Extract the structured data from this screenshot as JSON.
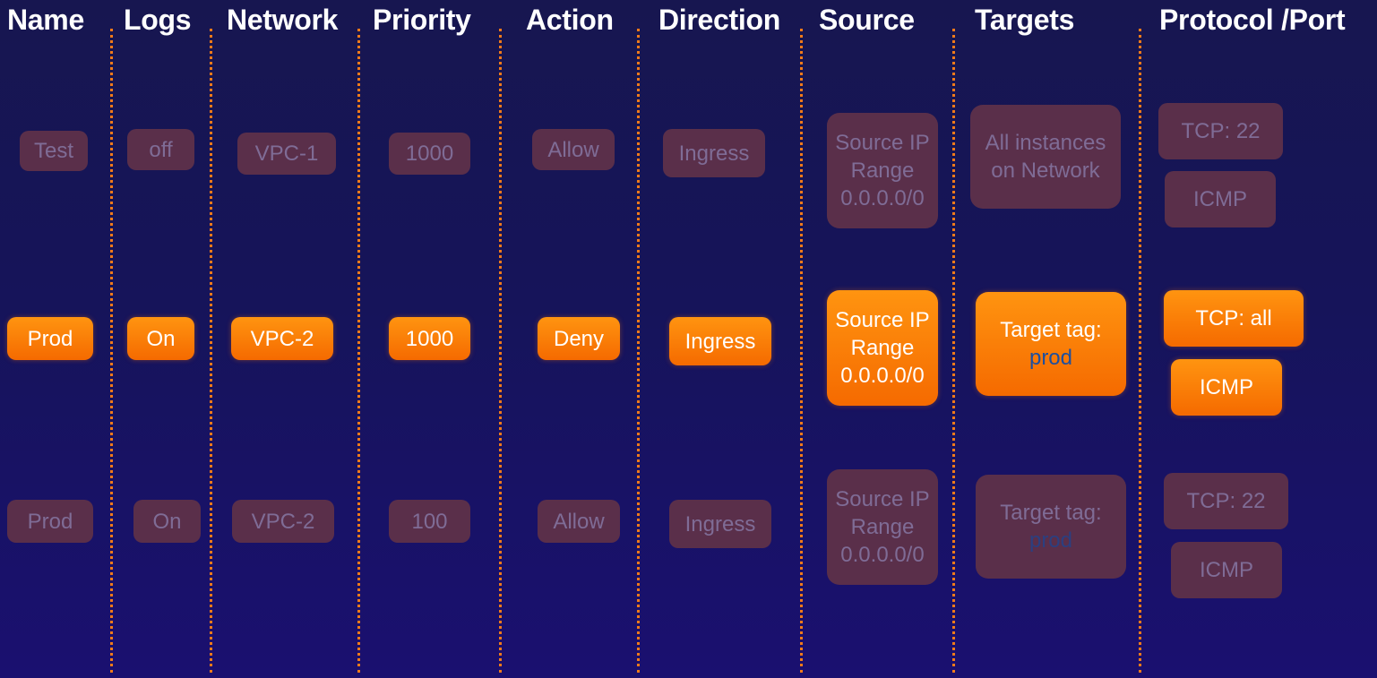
{
  "headers": {
    "name": "Name",
    "logs": "Logs",
    "network": "Network",
    "priority": "Priority",
    "action": "Action",
    "direction": "Direction",
    "source": "Source",
    "targets": "Targets",
    "protocol_port": "Protocol /Port"
  },
  "rows": [
    {
      "state": "dim",
      "name": "Test",
      "logs": "off",
      "network": "VPC-1",
      "priority": "1000",
      "action": "Allow",
      "direction": "Ingress",
      "source": [
        "Source IP",
        "Range",
        "0.0.0.0/0"
      ],
      "targets": [
        "All instances",
        "on Network"
      ],
      "protocols": [
        "TCP: 22",
        "ICMP"
      ]
    },
    {
      "state": "active",
      "name": "Prod",
      "logs": "On",
      "network": "VPC-2",
      "priority": "1000",
      "action": "Deny",
      "direction": "Ingress",
      "source": [
        "Source IP",
        "Range",
        "0.0.0.0/0"
      ],
      "targets": [
        "Target tag:",
        "prod"
      ],
      "protocols": [
        "TCP: all",
        "ICMP"
      ]
    },
    {
      "state": "dim",
      "name": "Prod",
      "logs": "On",
      "network": "VPC-2",
      "priority": "100",
      "action": "Allow",
      "direction": "Ingress",
      "source": [
        "Source IP",
        "Range",
        "0.0.0.0/0"
      ],
      "targets": [
        "Target tag:",
        "prod"
      ],
      "protocols": [
        "TCP: 22",
        "ICMP"
      ]
    }
  ],
  "colors": {
    "accent": "#f57a00",
    "dim_box": "#5a2f4a",
    "dim_text": "#7f6c96",
    "divider": "#f07a1a",
    "tag_value": "#1d4fa0",
    "background": "#171650"
  }
}
